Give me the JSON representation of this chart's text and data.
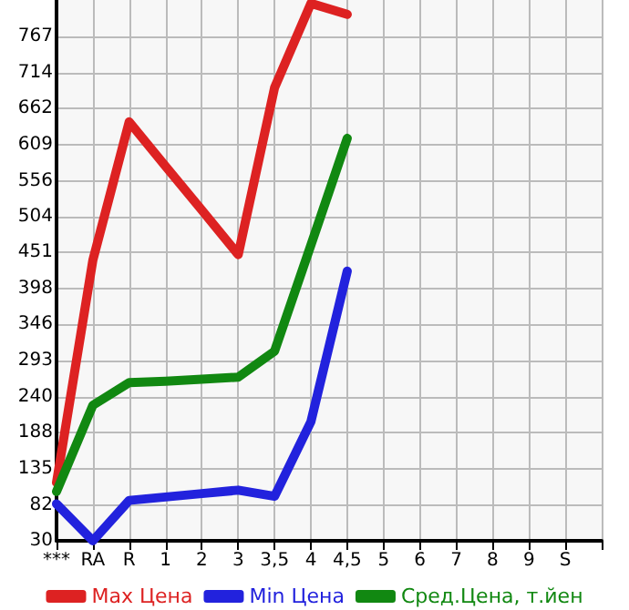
{
  "chart_data": {
    "type": "line",
    "categories": [
      "***",
      "RA",
      "R",
      "1",
      "2",
      "3",
      "3,5",
      "4",
      "4,5",
      "5",
      "6",
      "7",
      "8",
      "9",
      "S",
      null
    ],
    "series": [
      {
        "name": "Max Цена",
        "color": "#dd2222",
        "values": [
          115,
          440,
          642,
          577,
          513,
          448,
          692,
          815,
          799,
          null,
          null,
          null,
          null,
          null,
          null,
          null
        ]
      },
      {
        "name": "Min Цена",
        "color": "#2222dd",
        "values": [
          84,
          30,
          89,
          94,
          99,
          104,
          95,
          204,
          424,
          null,
          null,
          null,
          null,
          null,
          null,
          null
        ]
      },
      {
        "name": "Сред.Цена, т.йен",
        "color": "#118811",
        "values": [
          102,
          228,
          261,
          263,
          266,
          269,
          307,
          462,
          618,
          null,
          null,
          null,
          null,
          null,
          null,
          null
        ]
      }
    ],
    "ylim": [
      30,
      820
    ],
    "yticks": [
      30,
      82,
      135,
      188,
      240,
      293,
      346,
      398,
      451,
      504,
      556,
      609,
      662,
      714,
      767
    ],
    "grid": true,
    "legend": "bottom",
    "marker": "none",
    "line_style": "solid"
  }
}
